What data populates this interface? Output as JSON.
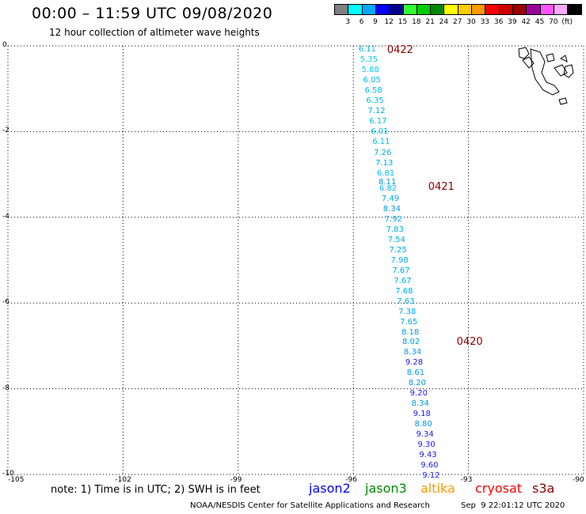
{
  "header": {
    "title": "00:00 – 11:59 UTC 09/08/2020",
    "subtitle": "12 hour collection of altimeter wave heights"
  },
  "colorbar": {
    "unit": "(ft)",
    "bins": [
      {
        "color": "#808080",
        "label": ""
      },
      {
        "color": "#00ffff",
        "label": "3"
      },
      {
        "color": "#00aaff",
        "label": "6"
      },
      {
        "color": "#0000ff",
        "label": "9"
      },
      {
        "color": "#00008b",
        "label": "12"
      },
      {
        "color": "#33ff33",
        "label": "15"
      },
      {
        "color": "#00cc00",
        "label": "18"
      },
      {
        "color": "#008800",
        "label": "21"
      },
      {
        "color": "#ffff00",
        "label": "24"
      },
      {
        "color": "#ffcc00",
        "label": "27"
      },
      {
        "color": "#ff9900",
        "label": "30"
      },
      {
        "color": "#ff0000",
        "label": "33"
      },
      {
        "color": "#cc0000",
        "label": "36"
      },
      {
        "color": "#990000",
        "label": "39"
      },
      {
        "color": "#990099",
        "label": "42"
      },
      {
        "color": "#ff55ff",
        "label": "45"
      },
      {
        "color": "#ffaaff",
        "label": "70"
      },
      {
        "color": "#000000",
        "label": ""
      }
    ]
  },
  "map": {
    "lon_ticks": [
      "-105",
      "-102",
      "-99",
      "-96",
      "-93",
      "-90"
    ],
    "lat_ticks": [
      "0",
      "-2",
      "-4",
      "-6",
      "-8",
      "-10"
    ],
    "lon_range": [
      -105,
      -90
    ],
    "lat_range": [
      0,
      -10
    ]
  },
  "track": [
    {
      "lon": -95.7,
      "lat": -0.1,
      "value": "6.11",
      "color": "#00bbee"
    },
    {
      "lon": -95.66,
      "lat": -0.34,
      "value": "5.35",
      "color": "#00ccee"
    },
    {
      "lon": -95.62,
      "lat": -0.58,
      "value": "5.88",
      "color": "#00ccee"
    },
    {
      "lon": -95.58,
      "lat": -0.82,
      "value": "6.05",
      "color": "#00bbee"
    },
    {
      "lon": -95.54,
      "lat": -1.06,
      "value": "6.58",
      "color": "#00bbee"
    },
    {
      "lon": -95.5,
      "lat": -1.3,
      "value": "6.35",
      "color": "#00bbee"
    },
    {
      "lon": -95.46,
      "lat": -1.54,
      "value": "7.12",
      "color": "#00aaee"
    },
    {
      "lon": -95.42,
      "lat": -1.78,
      "value": "6.17",
      "color": "#00bbee"
    },
    {
      "lon": -95.38,
      "lat": -2.02,
      "value": "6.01",
      "color": "#00bbee"
    },
    {
      "lon": -95.34,
      "lat": -2.26,
      "value": "6.11",
      "color": "#00bbee"
    },
    {
      "lon": -95.3,
      "lat": -2.5,
      "value": "7.26",
      "color": "#00aaee"
    },
    {
      "lon": -95.26,
      "lat": -2.74,
      "value": "7.13",
      "color": "#00aaee"
    },
    {
      "lon": -95.22,
      "lat": -2.98,
      "value": "6.81",
      "color": "#00bbee"
    },
    {
      "lon": -95.18,
      "lat": -3.2,
      "value": "8.11",
      "color": "#0099ee"
    },
    {
      "lon": -95.16,
      "lat": -3.34,
      "value": "6.82",
      "color": "#00bbee"
    },
    {
      "lon": -95.1,
      "lat": -3.58,
      "value": "7.49",
      "color": "#00aaee"
    },
    {
      "lon": -95.06,
      "lat": -3.82,
      "value": "8.34",
      "color": "#0099ee"
    },
    {
      "lon": -95.02,
      "lat": -4.06,
      "value": "7.92",
      "color": "#00aaee"
    },
    {
      "lon": -94.98,
      "lat": -4.3,
      "value": "7.83",
      "color": "#00aaee"
    },
    {
      "lon": -94.94,
      "lat": -4.54,
      "value": "7.54",
      "color": "#00aaee"
    },
    {
      "lon": -94.9,
      "lat": -4.78,
      "value": "7.25",
      "color": "#00aaee"
    },
    {
      "lon": -94.86,
      "lat": -5.02,
      "value": "7.98",
      "color": "#00aaee"
    },
    {
      "lon": -94.82,
      "lat": -5.26,
      "value": "7.67",
      "color": "#00aaee"
    },
    {
      "lon": -94.78,
      "lat": -5.5,
      "value": "7.67",
      "color": "#00aaee"
    },
    {
      "lon": -94.74,
      "lat": -5.74,
      "value": "7.68",
      "color": "#00aaee"
    },
    {
      "lon": -94.7,
      "lat": -5.98,
      "value": "7.63",
      "color": "#00aaee"
    },
    {
      "lon": -94.66,
      "lat": -6.22,
      "value": "7.38",
      "color": "#00aaee"
    },
    {
      "lon": -94.62,
      "lat": -6.46,
      "value": "7.65",
      "color": "#00aaee"
    },
    {
      "lon": -94.58,
      "lat": -6.7,
      "value": "8.18",
      "color": "#0099ee"
    },
    {
      "lon": -94.56,
      "lat": -6.92,
      "value": "8.02",
      "color": "#0099ee"
    },
    {
      "lon": -94.52,
      "lat": -7.16,
      "value": "8.34",
      "color": "#0099ee"
    },
    {
      "lon": -94.48,
      "lat": -7.4,
      "value": "9.28",
      "color": "#1a1aee"
    },
    {
      "lon": -94.44,
      "lat": -7.64,
      "value": "8.61",
      "color": "#0099ee"
    },
    {
      "lon": -94.4,
      "lat": -7.88,
      "value": "8.20",
      "color": "#0099ee"
    },
    {
      "lon": -94.36,
      "lat": -8.12,
      "value": "9.20",
      "color": "#1a1aee"
    },
    {
      "lon": -94.32,
      "lat": -8.36,
      "value": "8.34",
      "color": "#0099ee"
    },
    {
      "lon": -94.28,
      "lat": -8.6,
      "value": "9.18",
      "color": "#1a1aee"
    },
    {
      "lon": -94.24,
      "lat": -8.84,
      "value": "8.80",
      "color": "#0099ee"
    },
    {
      "lon": -94.2,
      "lat": -9.08,
      "value": "9.34",
      "color": "#1a1aee"
    },
    {
      "lon": -94.16,
      "lat": -9.32,
      "value": "9.30",
      "color": "#1a1aee"
    },
    {
      "lon": -94.12,
      "lat": -9.56,
      "value": "9.43",
      "color": "#1a1aee"
    },
    {
      "lon": -94.08,
      "lat": -9.8,
      "value": "9.60",
      "color": "#1a1aee"
    },
    {
      "lon": -94.04,
      "lat": -10.04,
      "value": "9.12",
      "color": "#1a1aee"
    }
  ],
  "passes": [
    {
      "label": "0422",
      "lon": -95.12,
      "lat": -0.1
    },
    {
      "label": "0421",
      "lon": -94.05,
      "lat": -3.28
    },
    {
      "label": "0420",
      "lon": -93.31,
      "lat": -6.9
    }
  ],
  "note": "note: 1) Time is in UTC; 2) SWH is in feet",
  "satellites": [
    {
      "name": "jason2",
      "color": "#0000ff"
    },
    {
      "name": "jason3",
      "color": "#008800"
    },
    {
      "name": "altika",
      "color": "#ff9900"
    },
    {
      "name": "cryosat",
      "color": "#ff0000"
    },
    {
      "name": "s3a",
      "color": "#8b0000"
    }
  ],
  "footer": {
    "credit": "NOAA/NESDIS Center for Satellite Applications and Research",
    "timestamp": "Sep  9 22:01:12 UTC 2020"
  }
}
